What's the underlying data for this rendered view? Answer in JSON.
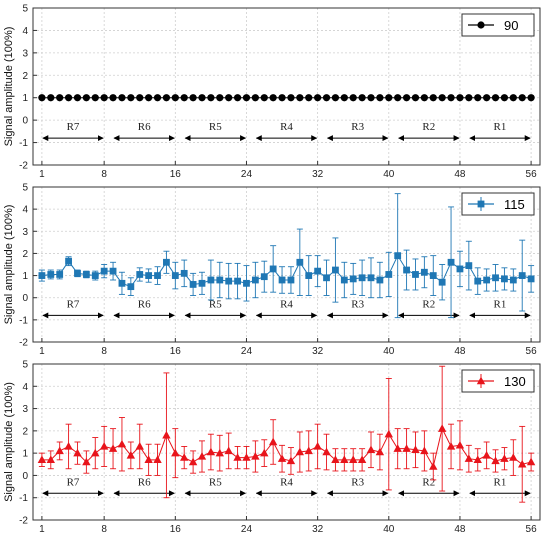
{
  "chart_data": [
    {
      "type": "scatter",
      "ylabel": "Signal amplitude (100%)",
      "ylim": [
        -2,
        5
      ],
      "xlim": [
        0,
        57
      ],
      "yticks": [
        -2,
        -1,
        0,
        1,
        2,
        3,
        4,
        5
      ],
      "xticks": [
        1,
        8,
        16,
        24,
        32,
        40,
        48,
        56
      ],
      "grid": true,
      "legend_position": "top-right",
      "series": [
        {
          "name": "90",
          "color": "#000000",
          "marker": "circle",
          "x": [
            1,
            2,
            3,
            4,
            5,
            6,
            7,
            8,
            9,
            10,
            11,
            12,
            13,
            14,
            15,
            16,
            17,
            18,
            19,
            20,
            21,
            22,
            23,
            24,
            25,
            26,
            27,
            28,
            29,
            30,
            31,
            32,
            33,
            34,
            35,
            36,
            37,
            38,
            39,
            40,
            41,
            42,
            43,
            44,
            45,
            46,
            47,
            48,
            49,
            50,
            51,
            52,
            53,
            54,
            55,
            56
          ],
          "values": [
            1,
            1,
            1,
            1,
            1,
            1,
            1,
            1,
            1,
            1,
            1,
            1,
            1,
            1,
            1,
            1,
            1,
            1,
            1,
            1,
            1,
            1,
            1,
            1,
            1,
            1,
            1,
            1,
            1,
            1,
            1,
            1,
            1,
            1,
            1,
            1,
            1,
            1,
            1,
            1,
            1,
            1,
            1,
            1,
            1,
            1,
            1,
            1,
            1,
            1,
            1,
            1,
            1,
            1,
            1,
            1
          ],
          "errors": []
        }
      ],
      "regions": [
        {
          "label": "R7",
          "from": 1,
          "to": 8
        },
        {
          "label": "R6",
          "from": 9,
          "to": 16
        },
        {
          "label": "R5",
          "from": 17,
          "to": 24
        },
        {
          "label": "R4",
          "from": 25,
          "to": 32
        },
        {
          "label": "R3",
          "from": 33,
          "to": 40
        },
        {
          "label": "R2",
          "from": 41,
          "to": 48
        },
        {
          "label": "R1",
          "from": 49,
          "to": 56
        }
      ],
      "region_arrow_y": -0.8
    },
    {
      "type": "scatter",
      "ylabel": "Signal amplitude (100%)",
      "ylim": [
        -2,
        5
      ],
      "xlim": [
        0,
        57
      ],
      "yticks": [
        -2,
        -1,
        0,
        1,
        2,
        3,
        4,
        5
      ],
      "xticks": [
        1,
        8,
        16,
        24,
        32,
        40,
        48,
        56
      ],
      "grid": true,
      "legend_position": "top-right",
      "series": [
        {
          "name": "115",
          "color": "#1f77b4",
          "marker": "square",
          "x": [
            1,
            2,
            3,
            4,
            5,
            6,
            7,
            8,
            9,
            10,
            11,
            12,
            13,
            14,
            15,
            16,
            17,
            18,
            19,
            20,
            21,
            22,
            23,
            24,
            25,
            26,
            27,
            28,
            29,
            30,
            31,
            32,
            33,
            34,
            35,
            36,
            37,
            38,
            39,
            40,
            41,
            42,
            43,
            44,
            45,
            46,
            47,
            48,
            49,
            50,
            51,
            52,
            53,
            54,
            55,
            56
          ],
          "values": [
            1.0,
            1.05,
            1.05,
            1.65,
            1.1,
            1.05,
            1.0,
            1.2,
            1.2,
            0.65,
            0.5,
            1.05,
            1.0,
            1.0,
            1.6,
            1.0,
            1.1,
            0.6,
            0.65,
            0.8,
            0.8,
            0.75,
            0.75,
            0.65,
            0.8,
            0.95,
            1.3,
            0.8,
            0.8,
            1.6,
            1.0,
            1.2,
            0.9,
            1.25,
            0.8,
            0.85,
            0.9,
            0.9,
            0.8,
            1.05,
            1.9,
            1.25,
            1.05,
            1.15,
            1.0,
            0.7,
            1.6,
            1.3,
            1.45,
            0.75,
            0.8,
            0.9,
            0.85,
            0.8,
            1.0,
            0.85
          ],
          "errors": [
            0.25,
            0.2,
            0.2,
            0.2,
            0.15,
            0.15,
            0.2,
            0.3,
            0.4,
            0.5,
            0.4,
            0.3,
            0.3,
            0.4,
            0.5,
            0.6,
            0.6,
            0.5,
            0.5,
            0.9,
            0.8,
            0.8,
            0.8,
            0.8,
            0.8,
            0.7,
            1.05,
            0.6,
            0.6,
            1.5,
            0.9,
            0.7,
            0.8,
            1.45,
            0.8,
            0.7,
            0.8,
            0.9,
            0.8,
            1.0,
            2.8,
            0.9,
            0.7,
            0.7,
            0.9,
            0.8,
            2.5,
            0.8,
            1.1,
            0.6,
            0.5,
            0.6,
            0.5,
            0.5,
            1.6,
            0.6
          ]
        }
      ],
      "regions": [
        {
          "label": "R7",
          "from": 1,
          "to": 8
        },
        {
          "label": "R6",
          "from": 9,
          "to": 16
        },
        {
          "label": "R5",
          "from": 17,
          "to": 24
        },
        {
          "label": "R4",
          "from": 25,
          "to": 32
        },
        {
          "label": "R3",
          "from": 33,
          "to": 40
        },
        {
          "label": "R2",
          "from": 41,
          "to": 48
        },
        {
          "label": "R1",
          "from": 49,
          "to": 56
        }
      ],
      "region_arrow_y": -0.8
    },
    {
      "type": "scatter",
      "ylabel": "Signal amplitude (100%)",
      "ylim": [
        -2,
        5
      ],
      "xlim": [
        0,
        57
      ],
      "yticks": [
        -2,
        -1,
        0,
        1,
        2,
        3,
        4,
        5
      ],
      "xticks": [
        1,
        8,
        16,
        24,
        32,
        40,
        48,
        56
      ],
      "grid": true,
      "legend_position": "top-right",
      "series": [
        {
          "name": "130",
          "color": "#e8141b",
          "marker": "triangle",
          "x": [
            1,
            2,
            3,
            4,
            5,
            6,
            7,
            8,
            9,
            10,
            11,
            12,
            13,
            14,
            15,
            16,
            17,
            18,
            19,
            20,
            21,
            22,
            23,
            24,
            25,
            26,
            27,
            28,
            29,
            30,
            31,
            32,
            33,
            34,
            35,
            36,
            37,
            38,
            39,
            40,
            41,
            42,
            43,
            44,
            45,
            46,
            47,
            48,
            49,
            50,
            51,
            52,
            53,
            54,
            55,
            56
          ],
          "values": [
            0.7,
            0.7,
            1.1,
            1.3,
            1.0,
            0.6,
            1.0,
            1.3,
            1.2,
            1.4,
            0.9,
            1.3,
            0.7,
            0.7,
            1.8,
            1.0,
            0.8,
            0.6,
            0.85,
            1.05,
            1.0,
            1.1,
            0.8,
            0.8,
            0.85,
            1.0,
            1.5,
            0.75,
            0.65,
            1.05,
            1.1,
            1.3,
            1.05,
            0.7,
            0.7,
            0.7,
            0.7,
            1.15,
            1.05,
            1.85,
            1.2,
            1.2,
            1.15,
            1.1,
            0.4,
            2.1,
            1.3,
            1.35,
            0.75,
            0.7,
            0.9,
            0.65,
            0.75,
            0.8,
            0.5,
            0.6
          ],
          "errors": [
            0.3,
            0.4,
            0.4,
            1.0,
            0.5,
            0.5,
            0.7,
            0.9,
            0.9,
            1.2,
            0.6,
            1.0,
            0.7,
            0.7,
            2.8,
            1.1,
            0.5,
            0.5,
            0.7,
            0.8,
            0.8,
            0.8,
            0.5,
            0.5,
            0.7,
            0.6,
            1.0,
            0.6,
            0.6,
            0.9,
            0.9,
            1.0,
            0.8,
            0.5,
            0.5,
            0.5,
            0.5,
            0.8,
            0.8,
            2.5,
            0.9,
            0.9,
            0.8,
            0.9,
            0.6,
            2.8,
            1.0,
            1.1,
            0.6,
            0.5,
            0.6,
            0.5,
            0.5,
            0.8,
            1.7,
            0.4
          ]
        }
      ],
      "regions": [
        {
          "label": "R7",
          "from": 1,
          "to": 8
        },
        {
          "label": "R6",
          "from": 9,
          "to": 16
        },
        {
          "label": "R5",
          "from": 17,
          "to": 24
        },
        {
          "label": "R4",
          "from": 25,
          "to": 32
        },
        {
          "label": "R3",
          "from": 33,
          "to": 40
        },
        {
          "label": "R2",
          "from": 41,
          "to": 48
        },
        {
          "label": "R1",
          "from": 49,
          "to": 56
        }
      ],
      "region_arrow_y": -0.8
    }
  ]
}
